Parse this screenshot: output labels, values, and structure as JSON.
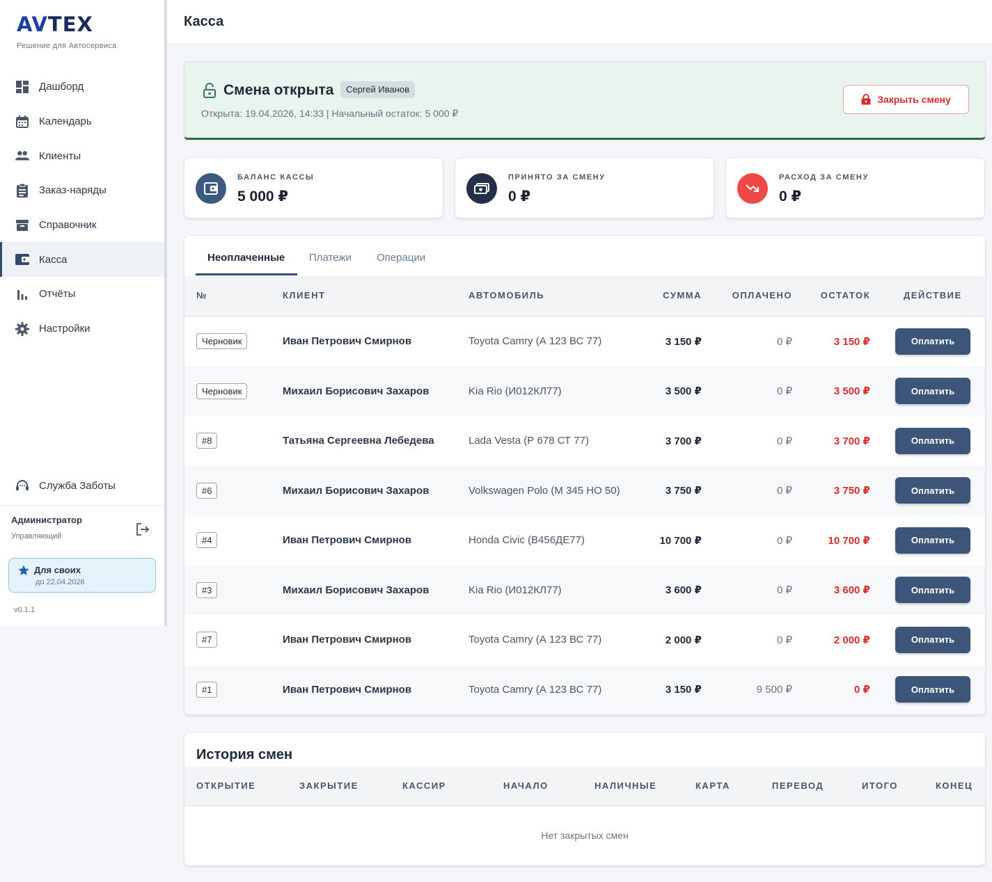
{
  "app": {
    "logo_av": "AV",
    "logo_rest": "TEX",
    "tagline": "Решение для Автосервиса"
  },
  "sidebar": {
    "items": [
      {
        "label": "Дашборд",
        "icon": "dashboard-icon"
      },
      {
        "label": "Календарь",
        "icon": "calendar-icon"
      },
      {
        "label": "Клиенты",
        "icon": "clients-icon"
      },
      {
        "label": "Заказ-наряды",
        "icon": "clipboard-icon"
      },
      {
        "label": "Справочник",
        "icon": "archive-icon"
      },
      {
        "label": "Касса",
        "icon": "wallet-icon",
        "active": true
      },
      {
        "label": "Отчёты",
        "icon": "bar-chart-icon"
      },
      {
        "label": "Настройки",
        "icon": "gear-icon"
      }
    ],
    "care_label": "Служба Заботы",
    "user_name": "Администратор",
    "user_role": "Управляющий",
    "plan_title": "Для своих",
    "plan_until": "до 22.04.2026",
    "version": "v0.1.1"
  },
  "header": {
    "title": "Касса"
  },
  "shift": {
    "title": "Смена открыта",
    "cashier": "Сергей Иванов",
    "meta": "Открыта: 19.04.2026, 14:33 | Начальный остаток: 5 000 ₽",
    "close_label": "Закрыть смену"
  },
  "stats": [
    {
      "label": "БАЛАНС КАССЫ",
      "value": "5 000 ₽"
    },
    {
      "label": "ПРИНЯТО ЗА СМЕНУ",
      "value": "0 ₽"
    },
    {
      "label": "РАСХОД ЗА СМЕНУ",
      "value": "0 ₽"
    }
  ],
  "tabs": [
    "Неоплаченные",
    "Платежи",
    "Операции"
  ],
  "table": {
    "headers": [
      "№",
      "КЛИЕНТ",
      "АВТОМОБИЛЬ",
      "СУММА",
      "ОПЛАЧЕНО",
      "ОСТАТОК",
      "ДЕЙСТВИЕ"
    ],
    "pay_label": "Оплатить",
    "rows": [
      {
        "num": "Черновик",
        "client": "Иван Петрович Смирнов",
        "car": "Toyota Camry (А 123 ВС 77)",
        "sum": "3 150 ₽",
        "paid": "0 ₽",
        "rest": "3 150 ₽"
      },
      {
        "num": "Черновик",
        "client": "Михаил Борисович Захаров",
        "car": "Kia Rio (И012КЛ77)",
        "sum": "3 500 ₽",
        "paid": "0 ₽",
        "rest": "3 500 ₽"
      },
      {
        "num": "#8",
        "client": "Татьяна Сергеевна Лебедева",
        "car": "Lada Vesta (Р 678 СТ 77)",
        "sum": "3 700 ₽",
        "paid": "0 ₽",
        "rest": "3 700 ₽"
      },
      {
        "num": "#6",
        "client": "Михаил Борисович Захаров",
        "car": "Volkswagen Polo (М 345 НО 50)",
        "sum": "3 750 ₽",
        "paid": "0 ₽",
        "rest": "3 750 ₽"
      },
      {
        "num": "#4",
        "client": "Иван Петрович Смирнов",
        "car": "Honda Civic (В456ДЕ77)",
        "sum": "10 700 ₽",
        "paid": "0 ₽",
        "rest": "10 700 ₽"
      },
      {
        "num": "#3",
        "client": "Михаил Борисович Захаров",
        "car": "Kia Rio (И012КЛ77)",
        "sum": "3 600 ₽",
        "paid": "0 ₽",
        "rest": "3 600 ₽"
      },
      {
        "num": "#7",
        "client": "Иван Петрович Смирнов",
        "car": "Toyota Camry (А 123 ВС 77)",
        "sum": "2 000 ₽",
        "paid": "0 ₽",
        "rest": "2 000 ₽"
      },
      {
        "num": "#1",
        "client": "Иван Петрович Смирнов",
        "car": "Toyota Camry (А 123 ВС 77)",
        "sum": "3 150 ₽",
        "paid": "9 500 ₽",
        "rest": "0 ₽"
      }
    ]
  },
  "history": {
    "title": "История смен",
    "headers": [
      "ОТКРЫТИЕ",
      "ЗАКРЫТИЕ",
      "КАССИР",
      "НАЧАЛО",
      "НАЛИЧНЫЕ",
      "КАРТА",
      "ПЕРЕВОД",
      "ИТОГО",
      "КОНЕЦ"
    ],
    "empty_text": "Нет закрытых смен"
  },
  "colors": {
    "accent": "#334a73",
    "danger": "#d32f2f",
    "shift_bg": "#eaf4ef"
  }
}
